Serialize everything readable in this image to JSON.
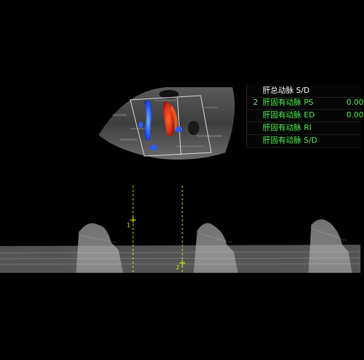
{
  "measurements": {
    "rows": [
      {
        "index": "",
        "label": "肝总动脉 S/D",
        "value": ""
      },
      {
        "index": "2",
        "label": "肝固有动脉 PS",
        "value": "0.00"
      },
      {
        "index": "",
        "label": "肝固有动脉 ED",
        "value": "0.00"
      },
      {
        "index": "",
        "label": "肝固有动脉 RI",
        "value": ""
      },
      {
        "index": "",
        "label": "肝固有动脉 S/D",
        "value": ""
      }
    ]
  },
  "colors": {
    "background": "#000000",
    "label_text": "#4df24d",
    "header_text": "#ffffff",
    "caliper": "#e6e600",
    "flow_toward": "#e0301a",
    "flow_away": "#2a5cff"
  }
}
